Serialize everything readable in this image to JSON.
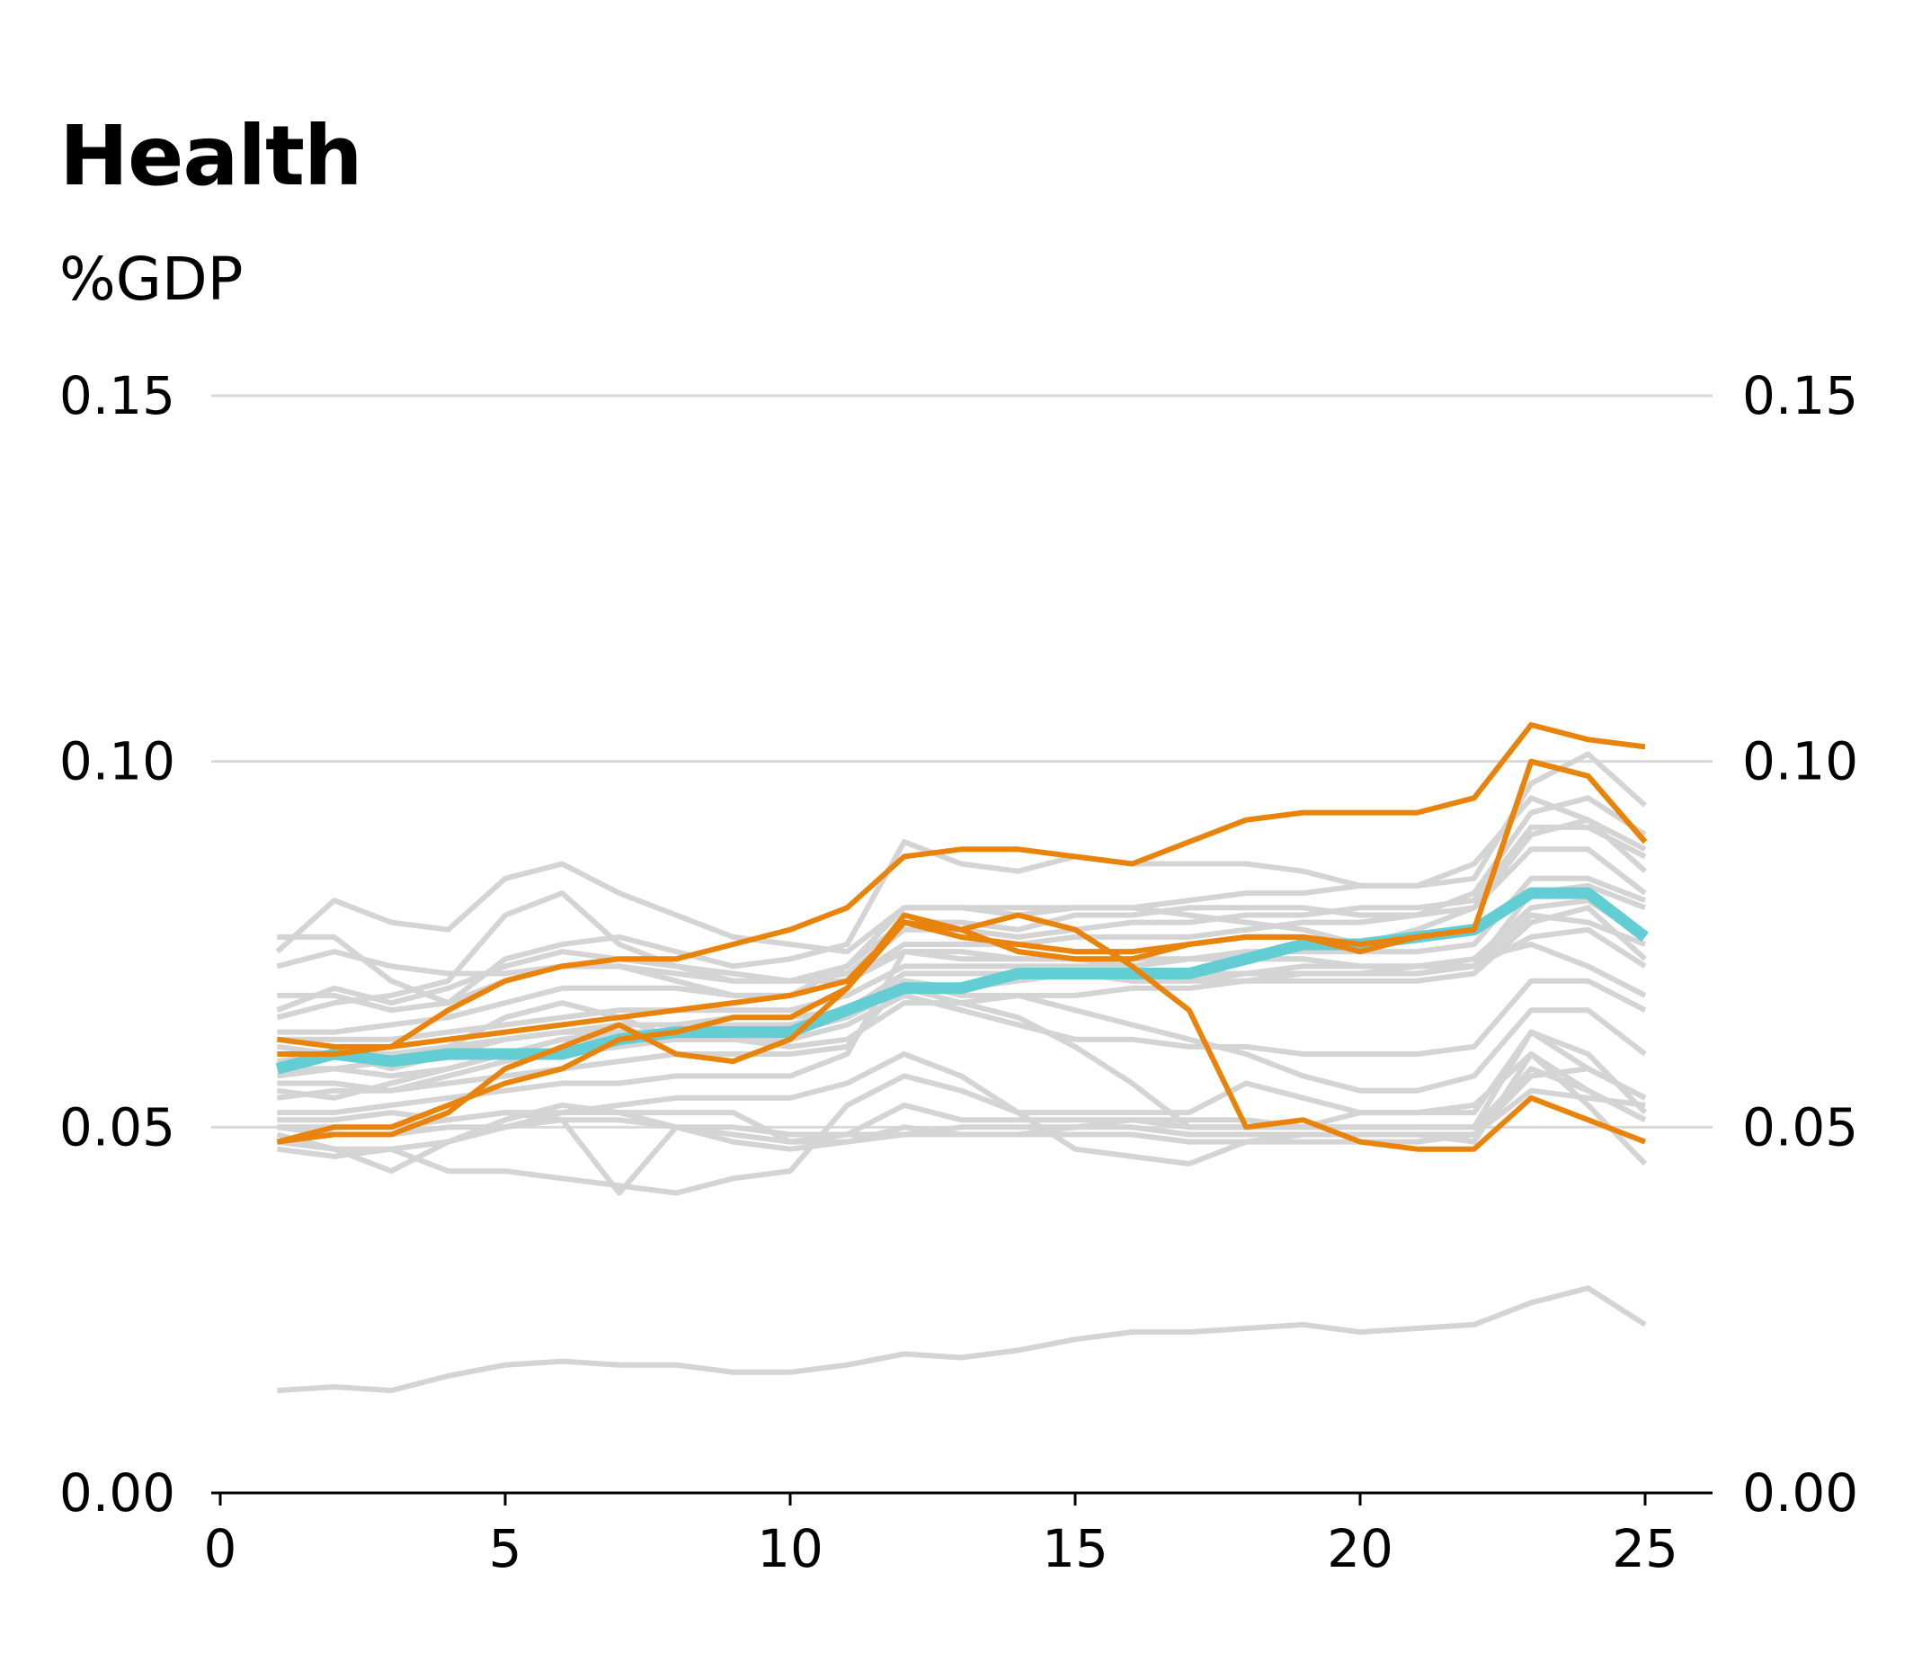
{
  "chart_data": {
    "type": "line",
    "title": "Health",
    "ylabel": "%GDP",
    "xlabel": "",
    "xlim": [
      0,
      26
    ],
    "ylim": [
      0,
      0.15
    ],
    "x_ticks": [
      "0",
      "5",
      "10",
      "15",
      "20",
      "25"
    ],
    "x_tick_values": [
      0,
      5,
      10,
      15,
      20,
      25
    ],
    "y_ticks": [
      "0.00",
      "0.05",
      "0.10",
      "0.15"
    ],
    "y_tick_values": [
      0,
      0.05,
      0.1,
      0.15
    ],
    "grid": "horizontal",
    "y_axis_sides": [
      "left",
      "right"
    ],
    "x": [
      1,
      2,
      3,
      4,
      5,
      6,
      7,
      8,
      9,
      10,
      11,
      12,
      13,
      14,
      15,
      16,
      17,
      18,
      19,
      20,
      21,
      22,
      23,
      24,
      25
    ],
    "colors": {
      "background": "#d4d4d4",
      "average": "#63cdd4",
      "highlight": "#e8830c",
      "grid": "#d9d9d9",
      "axis": "#000000"
    },
    "background_series": [
      {
        "values": [
          0.076,
          0.076,
          0.07,
          0.067,
          0.07,
          0.072,
          0.072,
          0.07,
          0.068,
          0.068,
          0.072,
          0.078,
          0.078,
          0.077,
          0.079,
          0.079,
          0.08,
          0.08,
          0.08,
          0.079,
          0.079,
          0.082,
          0.093,
          0.095,
          0.09
        ]
      },
      {
        "values": [
          0.074,
          0.081,
          0.078,
          0.077,
          0.084,
          0.086,
          0.082,
          0.079,
          0.076,
          0.075,
          0.074,
          0.08,
          0.08,
          0.08,
          0.08,
          0.08,
          0.079,
          0.078,
          0.077,
          0.075,
          0.077,
          0.08,
          0.088,
          0.088,
          0.082
        ]
      },
      {
        "values": [
          0.072,
          0.074,
          0.072,
          0.071,
          0.071,
          0.072,
          0.072,
          0.071,
          0.07,
          0.07,
          0.07,
          0.075,
          0.075,
          0.075,
          0.076,
          0.076,
          0.076,
          0.077,
          0.078,
          0.078,
          0.079,
          0.08,
          0.09,
          0.092,
          0.085
        ]
      },
      {
        "values": [
          0.068,
          0.068,
          0.066,
          0.067,
          0.073,
          0.075,
          0.076,
          0.074,
          0.072,
          0.073,
          0.075,
          0.089,
          0.086,
          0.085,
          0.087,
          0.086,
          0.086,
          0.086,
          0.085,
          0.083,
          0.083,
          0.084,
          0.097,
          0.101,
          0.094
        ]
      },
      {
        "values": [
          0.065,
          0.067,
          0.068,
          0.07,
          0.079,
          0.082,
          0.075,
          0.072,
          0.07,
          0.07,
          0.072,
          0.08,
          0.08,
          0.079,
          0.08,
          0.08,
          0.081,
          0.082,
          0.082,
          0.083,
          0.083,
          0.086,
          0.095,
          0.092,
          0.088
        ]
      },
      {
        "values": [
          0.066,
          0.069,
          0.067,
          0.069,
          0.072,
          0.074,
          0.073,
          0.072,
          0.071,
          0.07,
          0.071,
          0.077,
          0.077,
          0.076,
          0.077,
          0.078,
          0.078,
          0.079,
          0.079,
          0.08,
          0.08,
          0.081,
          0.091,
          0.091,
          0.087
        ]
      },
      {
        "values": [
          0.063,
          0.063,
          0.064,
          0.065,
          0.067,
          0.069,
          0.069,
          0.069,
          0.068,
          0.068,
          0.07,
          0.074,
          0.073,
          0.073,
          0.073,
          0.072,
          0.073,
          0.073,
          0.073,
          0.072,
          0.072,
          0.072,
          0.082,
          0.083,
          0.08
        ]
      },
      {
        "values": [
          0.062,
          0.062,
          0.062,
          0.063,
          0.064,
          0.065,
          0.066,
          0.066,
          0.066,
          0.066,
          0.068,
          0.072,
          0.072,
          0.072,
          0.072,
          0.072,
          0.073,
          0.074,
          0.074,
          0.074,
          0.074,
          0.075,
          0.084,
          0.084,
          0.081
        ]
      },
      {
        "values": [
          0.061,
          0.06,
          0.058,
          0.06,
          0.062,
          0.063,
          0.063,
          0.063,
          0.064,
          0.064,
          0.066,
          0.071,
          0.071,
          0.071,
          0.071,
          0.071,
          0.071,
          0.071,
          0.071,
          0.071,
          0.072,
          0.073,
          0.08,
          0.081,
          0.076
        ]
      },
      {
        "values": [
          0.059,
          0.06,
          0.06,
          0.061,
          0.062,
          0.063,
          0.064,
          0.064,
          0.065,
          0.065,
          0.066,
          0.071,
          0.071,
          0.071,
          0.071,
          0.071,
          0.07,
          0.07,
          0.07,
          0.07,
          0.07,
          0.071,
          0.078,
          0.08,
          0.073
        ]
      },
      {
        "values": [
          0.058,
          0.058,
          0.059,
          0.061,
          0.065,
          0.067,
          0.065,
          0.062,
          0.062,
          0.063,
          0.066,
          0.07,
          0.069,
          0.07,
          0.071,
          0.07,
          0.07,
          0.071,
          0.072,
          0.072,
          0.072,
          0.072,
          0.076,
          0.077,
          0.072
        ]
      },
      {
        "values": [
          0.057,
          0.058,
          0.057,
          0.058,
          0.06,
          0.062,
          0.063,
          0.063,
          0.063,
          0.063,
          0.065,
          0.069,
          0.067,
          0.065,
          0.061,
          0.056,
          0.05,
          0.05,
          0.05,
          0.052,
          0.052,
          0.052,
          0.063,
          0.06,
          0.052
        ]
      },
      {
        "values": [
          0.056,
          0.056,
          0.055,
          0.057,
          0.059,
          0.06,
          0.061,
          0.062,
          0.062,
          0.062,
          0.064,
          0.068,
          0.066,
          0.064,
          0.062,
          0.062,
          0.061,
          0.061,
          0.06,
          0.06,
          0.06,
          0.061,
          0.07,
          0.07,
          0.066
        ]
      },
      {
        "values": [
          0.055,
          0.054,
          0.056,
          0.058,
          0.06,
          0.062,
          0.062,
          0.062,
          0.062,
          0.061,
          0.062,
          0.067,
          0.067,
          0.068,
          0.066,
          0.064,
          0.062,
          0.06,
          0.057,
          0.055,
          0.055,
          0.057,
          0.066,
          0.066,
          0.06
        ]
      },
      {
        "values": [
          0.054,
          0.055,
          0.055,
          0.056,
          0.057,
          0.058,
          0.059,
          0.06,
          0.06,
          0.06,
          0.061,
          0.07,
          0.068,
          0.068,
          0.068,
          0.069,
          0.069,
          0.07,
          0.071,
          0.071,
          0.071,
          0.072,
          0.079,
          0.078,
          0.075
        ]
      },
      {
        "values": [
          0.052,
          0.052,
          0.053,
          0.054,
          0.055,
          0.056,
          0.056,
          0.057,
          0.057,
          0.057,
          0.06,
          0.074,
          0.074,
          0.073,
          0.073,
          0.073,
          0.073,
          0.073,
          0.073,
          0.072,
          0.072,
          0.073,
          0.075,
          0.072,
          0.068
        ]
      },
      {
        "values": [
          0.051,
          0.051,
          0.052,
          0.051,
          0.052,
          0.052,
          0.052,
          0.052,
          0.052,
          0.048,
          0.049,
          0.053,
          0.051,
          0.051,
          0.051,
          0.051,
          0.051,
          0.051,
          0.05,
          0.05,
          0.05,
          0.05,
          0.063,
          0.058,
          0.054
        ]
      },
      {
        "values": [
          0.05,
          0.05,
          0.05,
          0.051,
          0.052,
          0.051,
          0.041,
          0.05,
          0.05,
          0.049,
          0.049,
          0.049,
          0.05,
          0.05,
          0.05,
          0.051,
          0.05,
          0.05,
          0.05,
          0.05,
          0.05,
          0.05,
          0.058,
          0.055,
          0.051
        ]
      },
      {
        "values": [
          0.05,
          0.049,
          0.049,
          0.05,
          0.05,
          0.051,
          0.051,
          0.05,
          0.049,
          0.048,
          0.048,
          0.049,
          0.049,
          0.049,
          0.05,
          0.05,
          0.049,
          0.049,
          0.049,
          0.049,
          0.049,
          0.049,
          0.055,
          0.054,
          0.053
        ]
      },
      {
        "values": [
          0.049,
          0.047,
          0.044,
          0.048,
          0.051,
          0.053,
          0.052,
          0.05,
          0.048,
          0.047,
          0.048,
          0.05,
          0.049,
          0.049,
          0.049,
          0.049,
          0.048,
          0.048,
          0.048,
          0.048,
          0.048,
          0.049,
          0.057,
          0.058,
          0.054
        ]
      },
      {
        "values": [
          0.048,
          0.047,
          0.047,
          0.048,
          0.05,
          0.052,
          0.053,
          0.054,
          0.054,
          0.054,
          0.056,
          0.06,
          0.057,
          0.052,
          0.047,
          0.046,
          0.045,
          0.048,
          0.049,
          0.049,
          0.049,
          0.048,
          0.06,
          0.055,
          0.051
        ]
      },
      {
        "values": [
          0.047,
          0.046,
          0.047,
          0.044,
          0.044,
          0.043,
          0.042,
          0.041,
          0.043,
          0.044,
          0.053,
          0.057,
          0.055,
          0.052,
          0.052,
          0.052,
          0.052,
          0.056,
          0.054,
          0.052,
          0.052,
          0.053,
          0.06,
          0.053,
          0.045
        ]
      },
      {
        "values": [
          0.014,
          0.0145,
          0.014,
          0.016,
          0.0175,
          0.018,
          0.0175,
          0.0175,
          0.0165,
          0.0165,
          0.0175,
          0.019,
          0.0185,
          0.0195,
          0.021,
          0.022,
          0.022,
          0.0225,
          0.023,
          0.022,
          0.0225,
          0.023,
          0.026,
          0.028,
          0.023
        ]
      }
    ],
    "average_series": {
      "values": [
        0.058,
        0.06,
        0.059,
        0.06,
        0.06,
        0.06,
        0.062,
        0.063,
        0.063,
        0.063,
        0.066,
        0.069,
        0.069,
        0.071,
        0.071,
        0.071,
        0.071,
        0.073,
        0.075,
        0.075,
        0.076,
        0.077,
        0.082,
        0.082,
        0.076
      ]
    },
    "highlight_series": [
      {
        "values": [
          0.062,
          0.061,
          0.061,
          0.066,
          0.07,
          0.072,
          0.073,
          0.073,
          0.075,
          0.077,
          0.08,
          0.087,
          0.088,
          0.088,
          0.087,
          0.086,
          0.089,
          0.092,
          0.093,
          0.093,
          0.093,
          0.095,
          0.105,
          0.103,
          0.102
        ]
      },
      {
        "values": [
          0.06,
          0.06,
          0.061,
          0.062,
          0.063,
          0.064,
          0.065,
          0.066,
          0.067,
          0.068,
          0.07,
          0.078,
          0.076,
          0.075,
          0.074,
          0.074,
          0.075,
          0.076,
          0.076,
          0.075,
          0.076,
          0.077,
          0.1,
          0.098,
          0.089
        ]
      },
      {
        "values": [
          0.048,
          0.049,
          0.049,
          0.052,
          0.058,
          0.061,
          0.064,
          0.06,
          0.059,
          0.062,
          0.069,
          0.079,
          0.077,
          0.079,
          0.077,
          0.072,
          0.066,
          0.05,
          0.051,
          0.048,
          0.047,
          0.047,
          0.054,
          0.051,
          0.048
        ]
      },
      {
        "values": [
          0.048,
          0.05,
          0.05,
          0.053,
          0.056,
          0.058,
          0.062,
          0.063,
          0.065,
          0.065,
          0.069,
          0.078,
          0.077,
          0.074,
          0.073,
          0.073,
          0.075,
          0.076,
          0.076,
          0.074,
          0.076,
          0.077,
          0.1,
          0.098,
          0.089
        ]
      }
    ]
  }
}
